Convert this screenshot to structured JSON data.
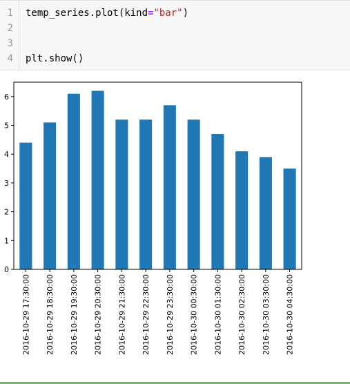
{
  "code_cell": {
    "line_numbers": [
      "1",
      "2",
      "3",
      "4"
    ],
    "line1": {
      "pre": "temp_series.plot(kind",
      "eq": "=",
      "str": "\"bar\"",
      "post": ")"
    },
    "line4": "plt.show()"
  },
  "chart_data": {
    "type": "bar",
    "color": "#1f77b4",
    "categories": [
      "2016-10-29 17:30:00",
      "2016-10-29 18:30:00",
      "2016-10-29 19:30:00",
      "2016-10-29 20:30:00",
      "2016-10-29 21:30:00",
      "2016-10-29 22:30:00",
      "2016-10-29 23:30:00",
      "2016-10-30 00:30:00",
      "2016-10-30 01:30:00",
      "2016-10-30 02:30:00",
      "2016-10-30 03:30:00",
      "2016-10-30 04:30:00"
    ],
    "values": [
      4.4,
      5.1,
      6.1,
      6.2,
      5.2,
      5.2,
      5.7,
      5.2,
      4.7,
      4.1,
      3.9,
      3.5
    ],
    "yticks": [
      "0",
      "1",
      "2",
      "3",
      "4",
      "5",
      "6"
    ],
    "ylim": [
      0,
      6.5
    ],
    "grid": false,
    "title": "",
    "xlabel": "",
    "ylabel": ""
  }
}
